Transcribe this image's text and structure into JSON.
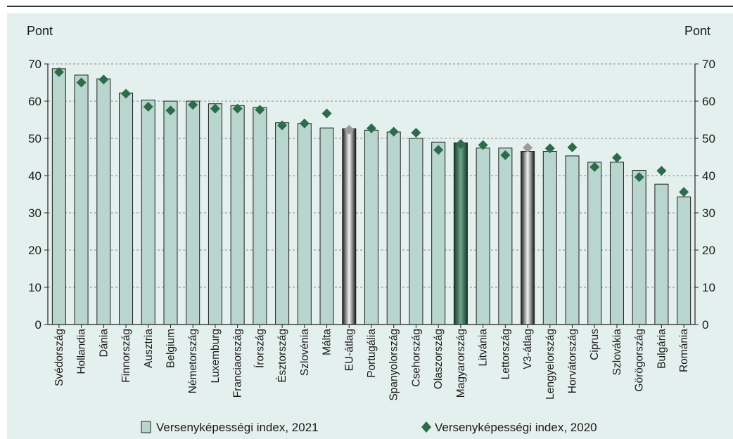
{
  "left_unit": "Pont",
  "right_unit": "Pont",
  "colors": {
    "bar": "#b8d6cd",
    "bar_border": "#1f1f1f",
    "highlight_gray": "#9a9a9a",
    "highlight_green": "#2f6b50",
    "diamond": "#2d6b4a",
    "diamond_avg": "#9a9a9a",
    "background": "#e4f0ed"
  },
  "chart_data": {
    "type": "bar",
    "ylim": [
      0,
      70
    ],
    "y_ticks": [
      0,
      10,
      20,
      30,
      40,
      50,
      60,
      70
    ],
    "grid": "horizontal dashed",
    "legend_position": "bottom",
    "categories": [
      "Svédország",
      "Hollandia",
      "Dánia",
      "Finnország",
      "Ausztria",
      "Belgium",
      "Németország",
      "Luxemburg",
      "Franciaország",
      "Írország",
      "Észtország",
      "Szlovénia",
      "Málta",
      "EU-átlag",
      "Portugália",
      "Spanyolország",
      "Csehország",
      "Olaszország",
      "Magyarország",
      "Litvánia",
      "Lettország",
      "V3-átlag",
      "Lengyelország",
      "Horvátország",
      "Ciprus",
      "Szlovákia",
      "Görögország",
      "Bulgária",
      "Románia"
    ],
    "highlight": {
      "EU-átlag": "gray",
      "V3-átlag": "gray",
      "Magyarország": "green"
    },
    "series": [
      {
        "name": "Versenyképességi index, 2021",
        "kind": "bar",
        "values": [
          68.7,
          67.0,
          66.0,
          62.2,
          60.3,
          60.0,
          60.0,
          59.3,
          58.8,
          58.3,
          54.2,
          54.0,
          52.8,
          52.6,
          52.2,
          51.7,
          50.0,
          49.0,
          48.8,
          47.4,
          47.4,
          46.5,
          46.5,
          45.3,
          43.6,
          43.6,
          41.4,
          37.7,
          34.3
        ]
      },
      {
        "name": "Versenyképességi index, 2020",
        "kind": "marker",
        "values": [
          67.8,
          65.0,
          65.8,
          62.0,
          58.5,
          57.5,
          59.0,
          58.0,
          58.0,
          57.7,
          53.5,
          54.0,
          56.7,
          52.3,
          52.7,
          51.8,
          51.5,
          46.9,
          48.5,
          48.2,
          45.5,
          47.5,
          47.3,
          47.6,
          42.3,
          44.8,
          39.6,
          41.3,
          35.6
        ]
      }
    ]
  }
}
